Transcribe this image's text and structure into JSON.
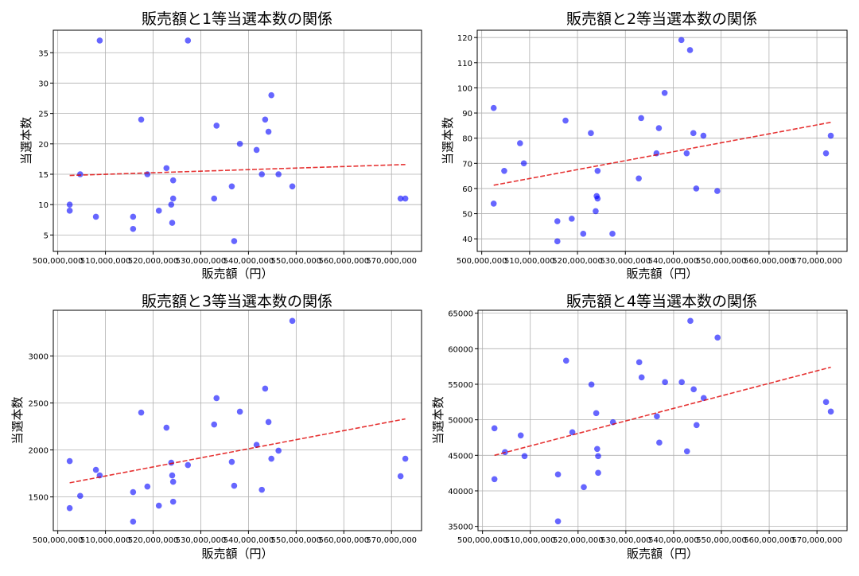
{
  "chart_data": [
    {
      "type": "scatter",
      "title": "販売額と1等当選本数の関係",
      "xlabel": "販売額（円）",
      "ylabel": "当選本数",
      "xlim": [
        499060000,
        576300000
      ],
      "ylim": [
        2.3,
        38.7
      ],
      "xticks": [
        500000000,
        510000000,
        520000000,
        530000000,
        540000000,
        550000000,
        560000000,
        570000000
      ],
      "xtick_labels": [
        "500,000,000",
        "510,000,000",
        "520,000,000",
        "530,000,000",
        "540,000,000",
        "550,000,000",
        "560,000,000",
        "570,000,000"
      ],
      "yticks": [
        5,
        10,
        15,
        20,
        25,
        30,
        35
      ],
      "ytick_labels": [
        "5",
        "10",
        "15",
        "20",
        "25",
        "30",
        "35"
      ],
      "grid": true,
      "x": [
        502500000,
        502500000,
        504700000,
        508000000,
        508800000,
        515800000,
        515800000,
        517500000,
        518800000,
        521200000,
        522800000,
        523800000,
        524000000,
        524200000,
        524200000,
        527300000,
        532800000,
        533300000,
        536500000,
        537000000,
        538200000,
        541700000,
        542800000,
        543500000,
        544200000,
        544800000,
        546300000,
        549200000,
        571900000,
        572900000
      ],
      "y": [
        10,
        9,
        15,
        8,
        37,
        8,
        6,
        24,
        15,
        9,
        16,
        10,
        7,
        14,
        11,
        37,
        11,
        23,
        13,
        4,
        20,
        19,
        15,
        24,
        22,
        28,
        15,
        13,
        11,
        11
      ],
      "trend": {
        "x": [
          502500000,
          572900000
        ],
        "y": [
          14.8,
          16.6
        ]
      }
    },
    {
      "type": "scatter",
      "title": "販売額と2等当選本数の関係",
      "xlabel": "販売額（円）",
      "ylabel": "当選本数",
      "xlim": [
        499060000,
        576300000
      ],
      "ylim": [
        35,
        122.9
      ],
      "xticks": [
        500000000,
        510000000,
        520000000,
        530000000,
        540000000,
        550000000,
        560000000,
        570000000
      ],
      "xtick_labels": [
        "500,000,000",
        "510,000,000",
        "520,000,000",
        "530,000,000",
        "540,000,000",
        "550,000,000",
        "560,000,000",
        "570,000,000"
      ],
      "yticks": [
        40,
        50,
        60,
        70,
        80,
        90,
        100,
        110,
        120
      ],
      "ytick_labels": [
        "40",
        "50",
        "60",
        "70",
        "80",
        "90",
        "100",
        "110",
        "120"
      ],
      "grid": true,
      "x": [
        502500000,
        502500000,
        504700000,
        508000000,
        508800000,
        515800000,
        515800000,
        517500000,
        518800000,
        521200000,
        522800000,
        523800000,
        524000000,
        524200000,
        524200000,
        527300000,
        532800000,
        533300000,
        536500000,
        537000000,
        538200000,
        541700000,
        542800000,
        543500000,
        544200000,
        544800000,
        546300000,
        549200000,
        571900000,
        572900000
      ],
      "y": [
        92,
        54,
        67,
        78,
        70,
        47,
        39,
        87,
        48,
        42,
        82,
        51,
        57,
        67,
        56,
        42,
        64,
        88,
        74,
        84,
        98,
        119,
        74,
        115,
        82,
        60,
        81,
        59,
        74,
        81
      ],
      "trend": {
        "x": [
          502500000,
          572900000
        ],
        "y": [
          61.3,
          86.3
        ]
      }
    },
    {
      "type": "scatter",
      "title": "販売額と3等当選本数の関係",
      "xlabel": "販売額（円）",
      "ylabel": "当選本数",
      "xlim": [
        499060000,
        576300000
      ],
      "ylim": [
        1141,
        3486
      ],
      "xticks": [
        500000000,
        510000000,
        520000000,
        530000000,
        540000000,
        550000000,
        560000000,
        570000000
      ],
      "xtick_labels": [
        "500,000,000",
        "510,000,000",
        "520,000,000",
        "530,000,000",
        "540,000,000",
        "550,000,000",
        "560,000,000",
        "570,000,000"
      ],
      "yticks": [
        1500,
        2000,
        2500,
        3000
      ],
      "ytick_labels": [
        "1500",
        "2000",
        "2500",
        "3000"
      ],
      "grid": true,
      "x": [
        502500000,
        502500000,
        504700000,
        508000000,
        508800000,
        515800000,
        515800000,
        517500000,
        518800000,
        521200000,
        522800000,
        523800000,
        524000000,
        524200000,
        524200000,
        527300000,
        532800000,
        533300000,
        536500000,
        537000000,
        538200000,
        541700000,
        542800000,
        543500000,
        544200000,
        544800000,
        546300000,
        549200000,
        571900000,
        572900000
      ],
      "y": [
        1881,
        1381,
        1511,
        1788,
        1729,
        1551,
        1237,
        2398,
        1610,
        1407,
        2237,
        1864,
        1729,
        1661,
        1449,
        1839,
        2271,
        2551,
        1873,
        1619,
        2407,
        2054,
        1576,
        2653,
        2297,
        1907,
        1992,
        3373,
        1720,
        1907
      ],
      "trend": {
        "x": [
          502500000,
          572900000
        ],
        "y": [
          1650,
          2330
        ]
      }
    },
    {
      "type": "scatter",
      "title": "販売額と4等当選本数の関係",
      "xlabel": "販売額（円）",
      "ylabel": "当選本数",
      "xlim": [
        499060000,
        576300000
      ],
      "ylim": [
        34400,
        65410
      ],
      "xticks": [
        500000000,
        510000000,
        520000000,
        530000000,
        540000000,
        550000000,
        560000000,
        570000000
      ],
      "xtick_labels": [
        "500,000,000",
        "510,000,000",
        "520,000,000",
        "530,000,000",
        "540,000,000",
        "550,000,000",
        "560,000,000",
        "570,000,000"
      ],
      "yticks": [
        35000,
        40000,
        45000,
        50000,
        55000,
        60000,
        65000
      ],
      "ytick_labels": [
        "35000",
        "40000",
        "45000",
        "50000",
        "55000",
        "60000",
        "65000"
      ],
      "grid": true,
      "x": [
        502500000,
        502500000,
        504700000,
        508000000,
        508800000,
        515800000,
        515800000,
        517500000,
        518800000,
        521200000,
        522800000,
        523800000,
        524000000,
        524200000,
        524200000,
        527300000,
        532800000,
        533300000,
        536500000,
        537000000,
        538200000,
        541700000,
        542800000,
        543500000,
        544200000,
        544800000,
        546300000,
        549200000,
        571900000,
        572900000
      ],
      "y": [
        48806,
        41642,
        45448,
        47799,
        44888,
        42313,
        35709,
        58321,
        48246,
        40522,
        54963,
        50933,
        45896,
        44888,
        42537,
        49664,
        58097,
        55970,
        50485,
        46791,
        55299,
        55299,
        45560,
        63918,
        54291,
        49254,
        53060,
        61567,
        52500,
        51157
      ],
      "trend": {
        "x": [
          502500000,
          572900000
        ],
        "y": [
          45000,
          57400
        ]
      }
    }
  ],
  "colors": {
    "points": "#0000ff",
    "trend": "#e00000",
    "grid": "#b0b0b0"
  }
}
